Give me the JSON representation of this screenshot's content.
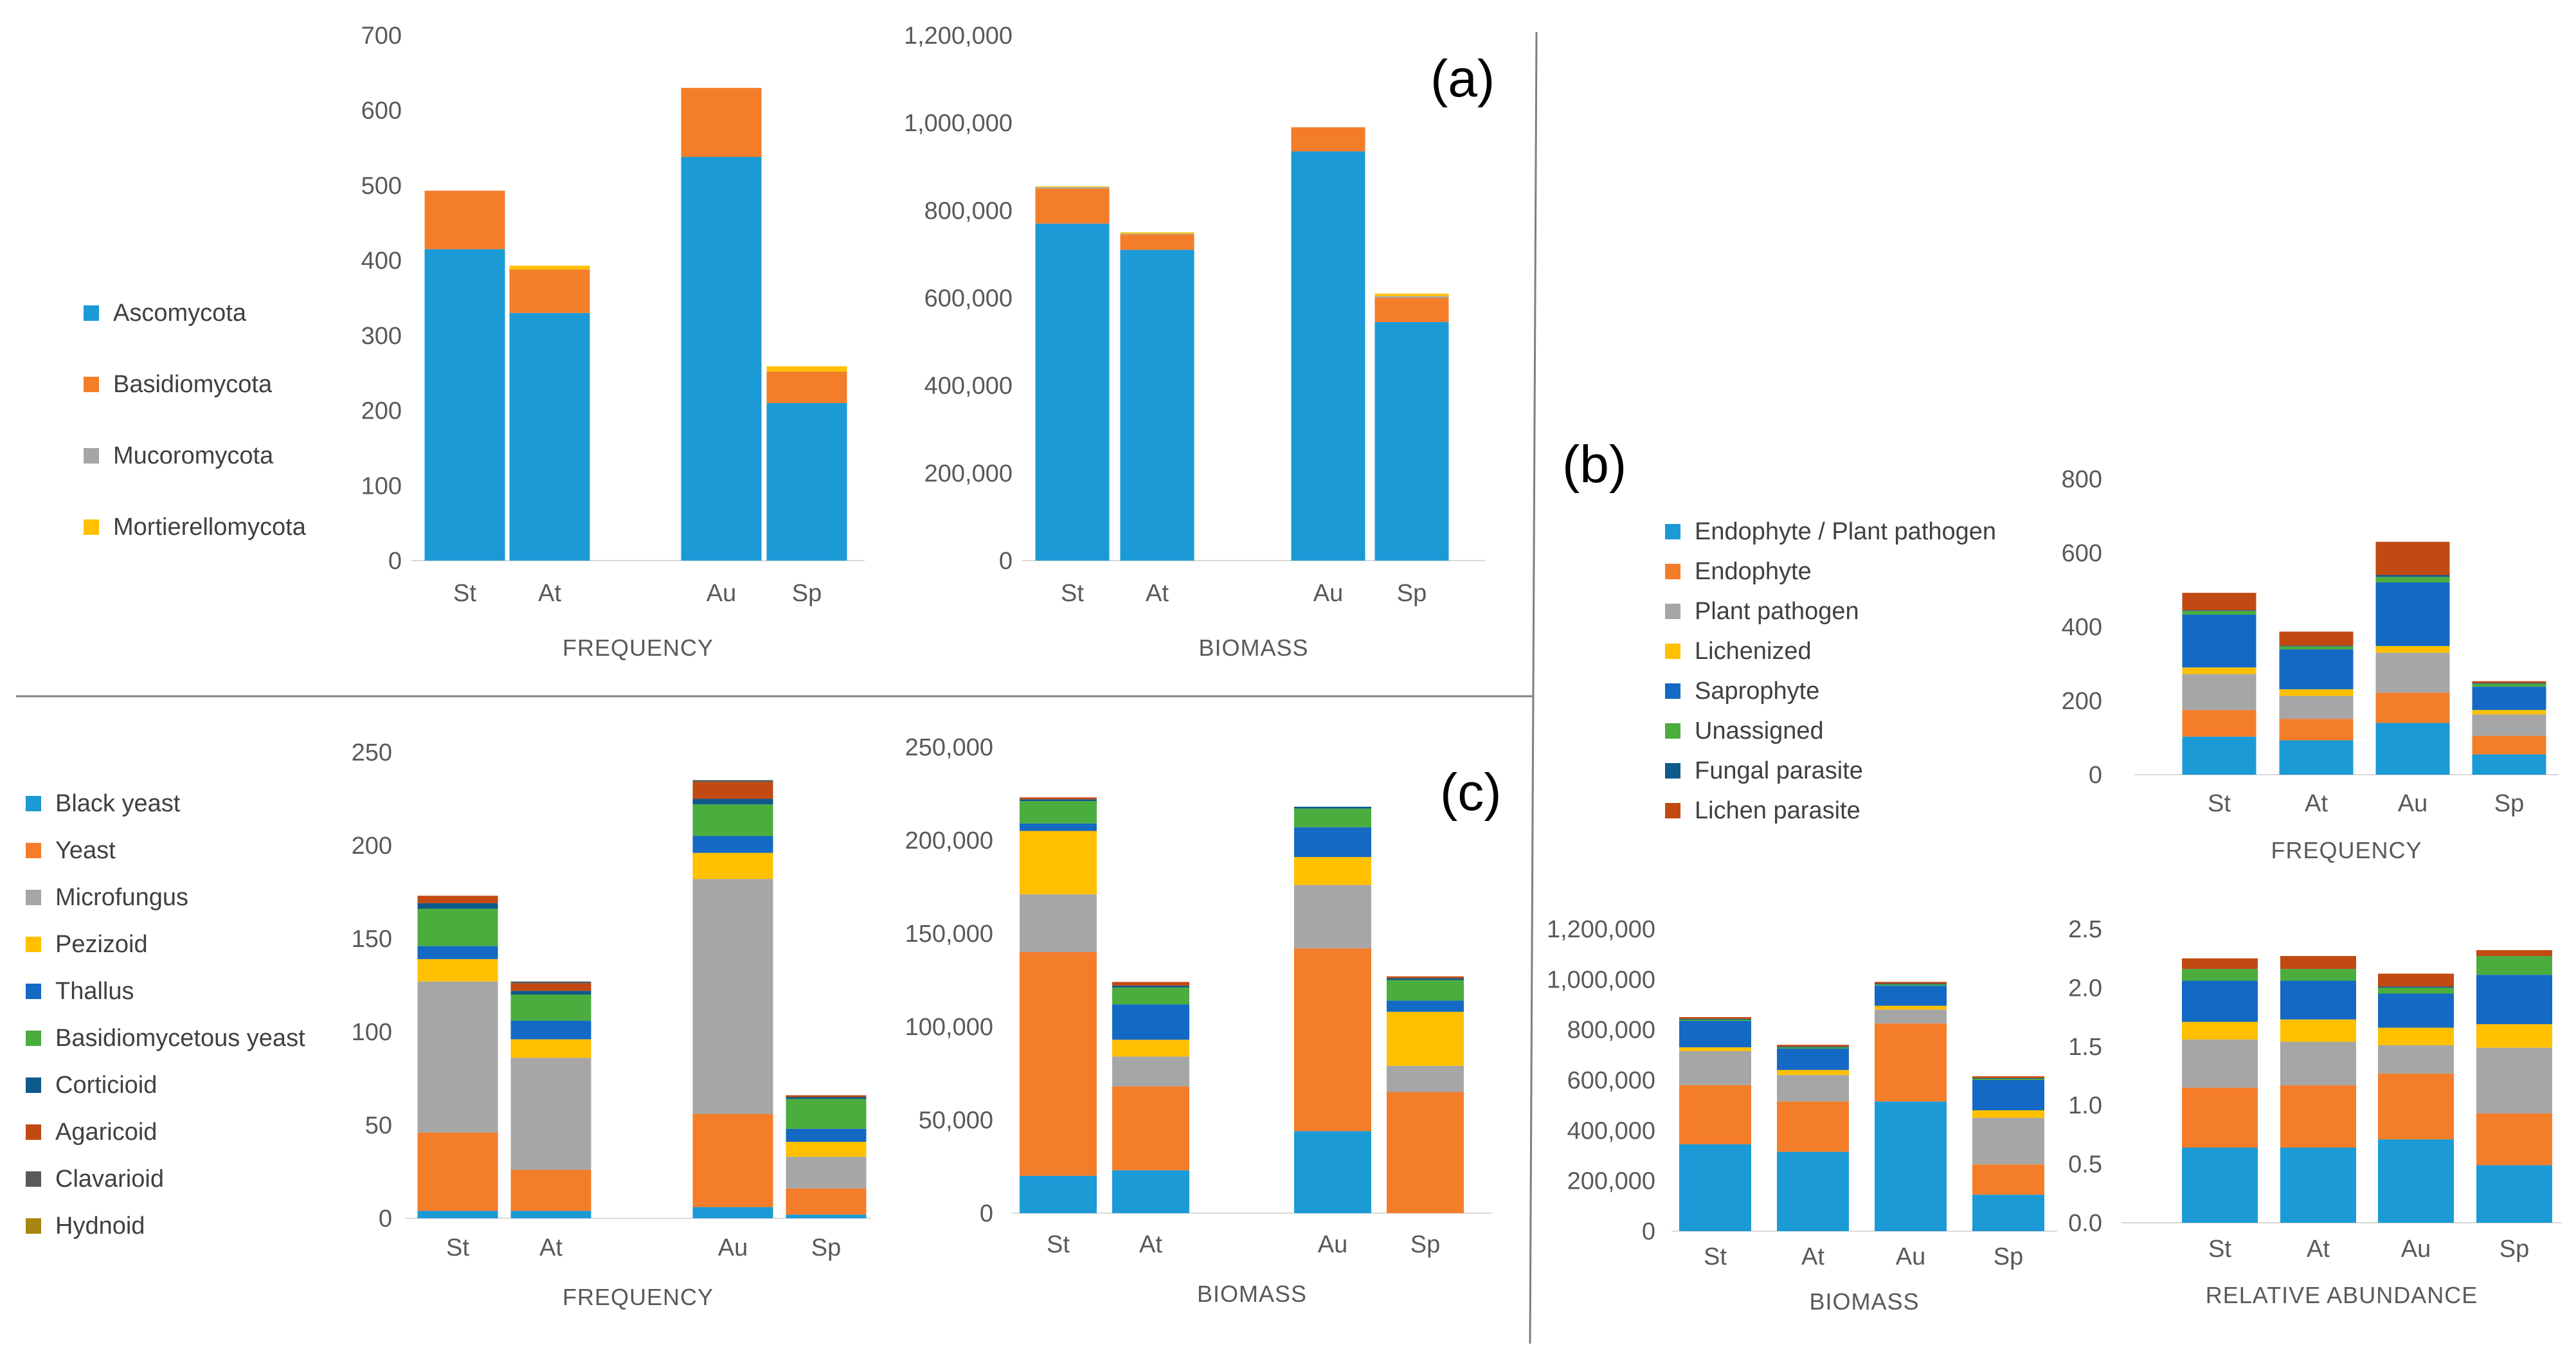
{
  "colors": {
    "Ascomycota": "#1b9ad6",
    "Basidiomycota": "#f47d2a",
    "Mucoromycota": "#a6a6a6",
    "Mortierellomycota": "#ffc000",
    "Endophyte / Plant pathogen": "#1b9ad6",
    "Endophyte": "#f47d2a",
    "Plant pathogen": "#a6a6a6",
    "Lichenized": "#ffc000",
    "Saprophyte": "#1469c4",
    "Unassigned": "#4bad3e",
    "Fungal parasite": "#0e5a8a",
    "Lichen parasite": "#c24a12",
    "Black yeast": "#1b9ad6",
    "Yeast": "#f47d2a",
    "Microfungus": "#a6a6a6",
    "Pezizoid": "#ffc000",
    "Thallus": "#1469c4",
    "Basidiomycetous yeast": "#4bad3e",
    "Corticioid": "#0e5a8a",
    "Agaricoid": "#c24a12",
    "Clavarioid": "#595959",
    "Hydnoid": "#a8860f"
  },
  "panel_labels": {
    "a": "(a)",
    "b": "(b)",
    "c": "(c)"
  },
  "legends": {
    "a": [
      "Ascomycota",
      "Basidiomycota",
      "Mucoromycota",
      "Mortierellomycota"
    ],
    "b": [
      "Endophyte / Plant pathogen",
      "Endophyte",
      "Plant pathogen",
      "Lichenized",
      "Saprophyte",
      "Unassigned",
      "Fungal parasite",
      "Lichen parasite"
    ],
    "c": [
      "Black yeast",
      "Yeast",
      "Microfungus",
      "Pezizoid",
      "Thallus",
      "Basidiomycetous yeast",
      "Corticioid",
      "Agaricoid",
      "Clavarioid",
      "Hydnoid"
    ]
  },
  "chart_data": [
    {
      "id": "a_frequency",
      "type": "bar",
      "stacked": true,
      "title": "FREQUENCY",
      "categories": [
        "St",
        "At",
        "Au",
        "Sp"
      ],
      "ylim": [
        0,
        700
      ],
      "yticks": [
        "0",
        "100",
        "200",
        "300",
        "400",
        "500",
        "600",
        "700"
      ],
      "series": [
        {
          "name": "Ascomycota",
          "values": [
            415,
            330,
            538,
            210
          ]
        },
        {
          "name": "Basidiomycota",
          "values": [
            78,
            58,
            92,
            42
          ]
        },
        {
          "name": "Mucoromycota",
          "values": [
            0,
            0,
            0,
            0
          ]
        },
        {
          "name": "Mortierellomycota",
          "values": [
            0,
            5,
            0,
            7
          ]
        }
      ]
    },
    {
      "id": "a_biomass",
      "type": "bar",
      "stacked": true,
      "title": "BIOMASS",
      "categories": [
        "St",
        "At",
        "Au",
        "Sp"
      ],
      "ylim": [
        0,
        1200000
      ],
      "yticks": [
        "0",
        "200,000",
        "400,000",
        "600,000",
        "800,000",
        "1,000,000",
        "1,200,000"
      ],
      "series": [
        {
          "name": "Ascomycota",
          "values": [
            770000,
            710000,
            935000,
            545000
          ]
        },
        {
          "name": "Basidiomycota",
          "values": [
            80000,
            35000,
            55000,
            55000
          ]
        },
        {
          "name": "Mucoromycota",
          "values": [
            3000,
            2000,
            0,
            4000
          ]
        },
        {
          "name": "Mortierellomycota",
          "values": [
            2000,
            3000,
            0,
            6000
          ]
        }
      ]
    },
    {
      "id": "b_frequency",
      "type": "bar",
      "stacked": true,
      "title": "FREQUENCY",
      "categories": [
        "St",
        "At",
        "Au",
        "Sp"
      ],
      "ylim": [
        0,
        800
      ],
      "yticks": [
        "0",
        "200",
        "400",
        "600",
        "800"
      ],
      "series": [
        {
          "name": "Endophyte / Plant pathogen",
          "values": [
            103,
            93,
            140,
            55
          ]
        },
        {
          "name": "Endophyte",
          "values": [
            72,
            58,
            82,
            50
          ]
        },
        {
          "name": "Plant pathogen",
          "values": [
            97,
            62,
            108,
            58
          ]
        },
        {
          "name": "Lichenized",
          "values": [
            18,
            18,
            18,
            12
          ]
        },
        {
          "name": "Saprophyte",
          "values": [
            143,
            108,
            172,
            63
          ]
        },
        {
          "name": "Unassigned",
          "values": [
            10,
            8,
            15,
            8
          ]
        },
        {
          "name": "Fungal parasite",
          "values": [
            2,
            2,
            5,
            2
          ]
        },
        {
          "name": "Lichen parasite",
          "values": [
            47,
            38,
            90,
            5
          ]
        }
      ]
    },
    {
      "id": "b_biomass",
      "type": "bar",
      "stacked": true,
      "title": "BIOMASS",
      "categories": [
        "St",
        "At",
        "Au",
        "Sp"
      ],
      "ylim": [
        0,
        1200000
      ],
      "yticks": [
        "0",
        "200,000",
        "400,000",
        "600,000",
        "800,000",
        "1,000,000",
        "1,200,000"
      ],
      "series": [
        {
          "name": "Endophyte / Plant pathogen",
          "values": [
            345000,
            315000,
            515000,
            145000
          ]
        },
        {
          "name": "Endophyte",
          "values": [
            235000,
            200000,
            310000,
            120000
          ]
        },
        {
          "name": "Plant pathogen",
          "values": [
            135000,
            105000,
            55000,
            185000
          ]
        },
        {
          "name": "Lichenized",
          "values": [
            15000,
            20000,
            15000,
            30000
          ]
        },
        {
          "name": "Saprophyte",
          "values": [
            105000,
            85000,
            80000,
            120000
          ]
        },
        {
          "name": "Unassigned",
          "values": [
            5000,
            5000,
            5000,
            5000
          ]
        },
        {
          "name": "Fungal parasite",
          "values": [
            3000,
            3000,
            3000,
            3000
          ]
        },
        {
          "name": "Lichen parasite",
          "values": [
            7000,
            7000,
            7000,
            7000
          ]
        }
      ]
    },
    {
      "id": "b_relative",
      "type": "bar",
      "stacked": true,
      "title": "RELATIVE ABUNDANCE",
      "categories": [
        "St",
        "At",
        "Au",
        "Sp"
      ],
      "ylim": [
        0,
        2.5
      ],
      "yticks": [
        "0.0",
        "0.5",
        "1.0",
        "1.5",
        "2.0",
        "2.5"
      ],
      "series": [
        {
          "name": "Endophyte / Plant pathogen",
          "values": [
            0.64,
            0.64,
            0.71,
            0.49
          ]
        },
        {
          "name": "Endophyte",
          "values": [
            0.51,
            0.53,
            0.56,
            0.44
          ]
        },
        {
          "name": "Plant pathogen",
          "values": [
            0.41,
            0.37,
            0.24,
            0.56
          ]
        },
        {
          "name": "Lichenized",
          "values": [
            0.15,
            0.19,
            0.15,
            0.2
          ]
        },
        {
          "name": "Saprophyte",
          "values": [
            0.35,
            0.33,
            0.29,
            0.42
          ]
        },
        {
          "name": "Unassigned",
          "values": [
            0.1,
            0.1,
            0.05,
            0.16
          ]
        },
        {
          "name": "Fungal parasite",
          "values": [
            0.0,
            0.0,
            0.01,
            0.0
          ]
        },
        {
          "name": "Lichen parasite",
          "values": [
            0.09,
            0.11,
            0.11,
            0.05
          ]
        }
      ]
    },
    {
      "id": "c_frequency",
      "type": "bar",
      "stacked": true,
      "title": "FREQUENCY",
      "categories": [
        "St",
        "At",
        "Au",
        "Sp"
      ],
      "ylim": [
        0,
        250
      ],
      "yticks": [
        "0",
        "50",
        "100",
        "150",
        "200",
        "250"
      ],
      "series": [
        {
          "name": "Black yeast",
          "values": [
            4,
            4,
            6,
            2
          ]
        },
        {
          "name": "Yeast",
          "values": [
            42,
            22,
            50,
            14
          ]
        },
        {
          "name": "Microfungus",
          "values": [
            81,
            60,
            126,
            17
          ]
        },
        {
          "name": "Pezizoid",
          "values": [
            12,
            10,
            14,
            8
          ]
        },
        {
          "name": "Thallus",
          "values": [
            7,
            10,
            9,
            7
          ]
        },
        {
          "name": "Basidiomycetous yeast",
          "values": [
            20,
            14,
            17,
            16
          ]
        },
        {
          "name": "Corticioid",
          "values": [
            3,
            2,
            3,
            1
          ]
        },
        {
          "name": "Agaricoid",
          "values": [
            4,
            4,
            9,
            1
          ]
        },
        {
          "name": "Clavarioid",
          "values": [
            0,
            1,
            1,
            0
          ]
        },
        {
          "name": "Hydnoid",
          "values": [
            0,
            0,
            0,
            0
          ]
        }
      ]
    },
    {
      "id": "c_biomass",
      "type": "bar",
      "stacked": true,
      "title": "BIOMASS",
      "categories": [
        "St",
        "At",
        "Au",
        "Sp"
      ],
      "ylim": [
        0,
        250000
      ],
      "yticks": [
        "0",
        "50,000",
        "100,000",
        "150,000",
        "200,000",
        "250,000"
      ],
      "series": [
        {
          "name": "Black yeast",
          "values": [
            20000,
            23000,
            44000,
            0
          ]
        },
        {
          "name": "Yeast",
          "values": [
            120000,
            45000,
            98000,
            65000
          ]
        },
        {
          "name": "Microfungus",
          "values": [
            31000,
            16000,
            34000,
            14000
          ]
        },
        {
          "name": "Pezizoid",
          "values": [
            34000,
            9000,
            15000,
            29000
          ]
        },
        {
          "name": "Thallus",
          "values": [
            4000,
            19000,
            16000,
            6000
          ]
        },
        {
          "name": "Basidiomycetous yeast",
          "values": [
            12000,
            9000,
            10000,
            11000
          ]
        },
        {
          "name": "Corticioid",
          "values": [
            1000,
            1000,
            1000,
            1000
          ]
        },
        {
          "name": "Agaricoid",
          "values": [
            1000,
            2000,
            0,
            1000
          ]
        },
        {
          "name": "Clavarioid",
          "values": [
            0,
            0,
            0,
            0
          ]
        },
        {
          "name": "Hydnoid",
          "values": [
            0,
            0,
            0,
            0
          ]
        }
      ]
    }
  ]
}
